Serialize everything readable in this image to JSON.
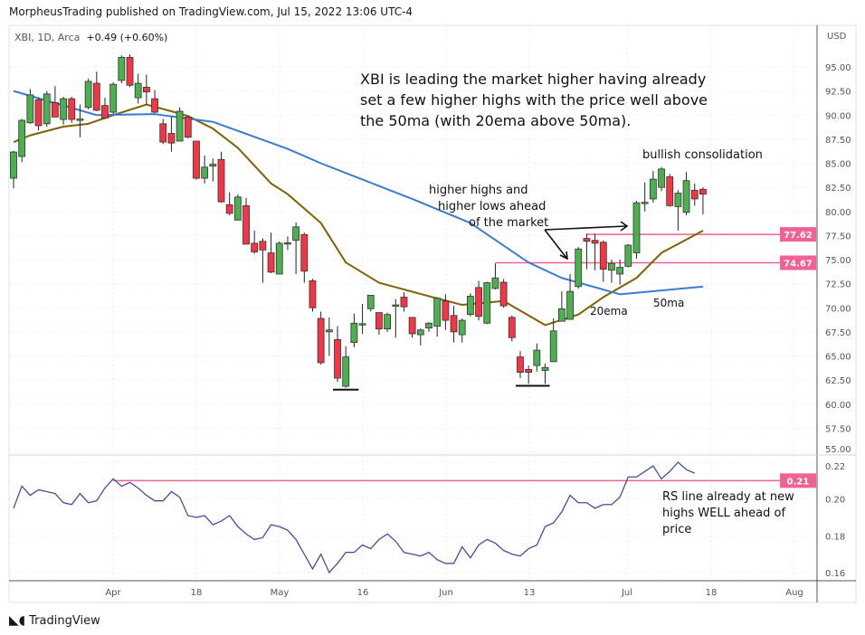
{
  "header": {
    "publisher": "MorpheusTrading published on TradingView.com, Jul 15, 2022 13:06 UTC-4",
    "symbol": "XBI, 1D, Arca",
    "change": "+0.49 (+0.60%)"
  },
  "footer": {
    "logo": "TradingView",
    "logo_icon": "tradingview-logo-icon"
  },
  "colors": {
    "up": "#4caf50",
    "down": "#f23645",
    "ema20": "#806000",
    "ma50": "#3a7bd5",
    "rs": "#4a4a9a",
    "level": "#f06292"
  },
  "chart_data": [
    {
      "type": "candlestick",
      "ylabel": "USD",
      "ylim": [
        55,
        97.5
      ],
      "yticks": [
        "95.00",
        "92.50",
        "90.00",
        "87.50",
        "85.00",
        "82.50",
        "80.00",
        "77.50",
        "75.00",
        "72.50",
        "70.00",
        "67.50",
        "65.00",
        "62.50",
        "60.00",
        "57.50",
        "55.00"
      ],
      "xticks": [
        "Apr",
        "18",
        "May",
        "16",
        "Jun",
        "13",
        "Jul",
        "18",
        "Aug"
      ],
      "ohlc": [
        [
          83.45,
          86.3,
          82.4,
          86.17
        ],
        [
          85.7,
          89.6,
          85.1,
          89.46
        ],
        [
          89.2,
          92.7,
          89.1,
          92.1
        ],
        [
          91.6,
          91.8,
          88.4,
          88.9
        ],
        [
          89.1,
          92.5,
          88.8,
          92.2
        ],
        [
          91.3,
          93.0,
          89.8,
          89.8
        ],
        [
          89.55,
          91.9,
          89.0,
          91.7
        ],
        [
          91.7,
          91.9,
          89.2,
          89.55
        ],
        [
          89.45,
          91.1,
          87.7,
          89.6
        ],
        [
          90.8,
          93.8,
          90.6,
          93.5
        ],
        [
          93.3,
          94.5,
          90.4,
          90.5
        ],
        [
          91.0,
          91.8,
          89.6,
          89.7
        ],
        [
          90.3,
          93.4,
          90.1,
          93.2
        ],
        [
          93.6,
          96.2,
          93.3,
          96.0
        ],
        [
          96.0,
          96.3,
          92.9,
          93.1
        ],
        [
          91.8,
          94.3,
          91.2,
          93.3
        ],
        [
          92.9,
          94.2,
          91.1,
          92.4
        ],
        [
          91.7,
          92.6,
          90.2,
          90.3
        ],
        [
          89.1,
          89.6,
          87.0,
          87.2
        ],
        [
          88.1,
          89.8,
          86.2,
          87.1
        ],
        [
          87.3,
          90.8,
          87.3,
          90.4
        ],
        [
          89.8,
          89.9,
          87.6,
          87.7
        ],
        [
          87.3,
          87.3,
          83.3,
          83.45
        ],
        [
          83.45,
          85.8,
          82.9,
          84.6
        ],
        [
          84.7,
          85.5,
          83.1,
          84.9
        ],
        [
          85.4,
          86.2,
          80.9,
          81.0
        ],
        [
          80.7,
          82.0,
          79.6,
          79.8
        ],
        [
          79.1,
          81.8,
          79.1,
          81.5
        ],
        [
          80.6,
          81.4,
          76.6,
          76.6
        ],
        [
          76.7,
          78.0,
          75.6,
          75.8
        ],
        [
          76.9,
          77.2,
          72.6,
          76.0
        ],
        [
          75.7,
          77.8,
          73.6,
          73.7
        ],
        [
          73.5,
          76.9,
          73.5,
          76.7
        ],
        [
          76.7,
          77.4,
          76.0,
          76.75
        ],
        [
          77.0,
          78.85,
          73.5,
          78.4
        ],
        [
          77.6,
          77.8,
          72.6,
          73.8
        ],
        [
          72.8,
          73.0,
          69.6,
          70.0
        ],
        [
          68.9,
          69.6,
          64.1,
          64.3
        ],
        [
          67.5,
          69.0,
          65.0,
          67.7
        ],
        [
          66.7,
          68.1,
          62.3,
          62.7
        ],
        [
          61.85,
          66.0,
          61.7,
          64.9
        ],
        [
          66.4,
          69.4,
          65.9,
          68.4
        ],
        [
          68.25,
          70.4,
          67.3,
          68.35
        ],
        [
          69.9,
          71.3,
          69.6,
          71.3
        ],
        [
          69.5,
          69.5,
          67.2,
          67.8
        ],
        [
          67.8,
          69.5,
          67.5,
          69.3
        ],
        [
          70.3,
          70.9,
          66.9,
          70.3
        ],
        [
          71.1,
          71.6,
          69.6,
          70.1
        ],
        [
          69.0,
          69.0,
          66.9,
          67.3
        ],
        [
          67.2,
          67.85,
          66.1,
          67.7
        ],
        [
          67.9,
          68.5,
          67.5,
          68.4
        ],
        [
          68.1,
          71.1,
          67.0,
          71.0
        ],
        [
          70.7,
          71.4,
          67.7,
          68.7
        ],
        [
          69.2,
          70.2,
          66.4,
          67.5
        ],
        [
          67.2,
          68.9,
          66.4,
          68.7
        ],
        [
          69.3,
          71.5,
          69.1,
          71.2
        ],
        [
          72.1,
          72.8,
          68.7,
          69.1
        ],
        [
          68.4,
          72.7,
          68.3,
          72.6
        ],
        [
          72.0,
          74.6,
          71.9,
          73.1
        ],
        [
          72.65,
          73.0,
          70.0,
          70.2
        ],
        [
          69.0,
          69.2,
          66.5,
          66.9
        ],
        [
          64.9,
          65.5,
          62.7,
          63.3
        ],
        [
          63.6,
          64.0,
          62.1,
          63.3
        ],
        [
          64.0,
          66.3,
          63.4,
          65.6
        ],
        [
          63.5,
          64.2,
          62.1,
          63.8
        ],
        [
          64.4,
          68.9,
          64.4,
          67.6
        ],
        [
          68.6,
          71.7,
          68.6,
          69.9
        ],
        [
          68.8,
          73.5,
          68.8,
          71.7
        ],
        [
          72.2,
          76.3,
          72.0,
          76.1
        ],
        [
          77.2,
          77.7,
          74.0,
          76.9
        ],
        [
          77.0,
          77.7,
          73.9,
          76.7
        ],
        [
          76.8,
          77.0,
          72.7,
          74.0
        ],
        [
          73.9,
          75.0,
          72.6,
          74.6
        ],
        [
          73.5,
          75.0,
          72.4,
          74.2
        ],
        [
          74.3,
          76.6,
          74.2,
          76.5
        ],
        [
          75.7,
          81.1,
          75.1,
          80.9
        ],
        [
          80.85,
          83.0,
          80.0,
          80.95
        ],
        [
          81.3,
          84.2,
          80.9,
          83.35
        ],
        [
          82.5,
          84.6,
          82.1,
          84.4
        ],
        [
          83.6,
          83.9,
          80.5,
          80.6
        ],
        [
          80.5,
          82.2,
          78.0,
          81.9
        ],
        [
          79.9,
          84.1,
          79.6,
          83.2
        ],
        [
          82.2,
          82.9,
          80.6,
          81.3
        ],
        [
          82.3,
          82.5,
          79.7,
          81.8
        ]
      ],
      "series": [
        {
          "name": "20ema",
          "points": [
            [
              0,
              87.2
            ],
            [
              2,
              87.9
            ],
            [
              6,
              88.8
            ],
            [
              9,
              89.1
            ],
            [
              12,
              90.0
            ],
            [
              16,
              91.1
            ],
            [
              19,
              90.4
            ],
            [
              21,
              89.9
            ],
            [
              24,
              88.6
            ],
            [
              27,
              86.6
            ],
            [
              31,
              82.9
            ],
            [
              33,
              81.8
            ],
            [
              37,
              78.8
            ],
            [
              40,
              74.7
            ],
            [
              44,
              72.6
            ],
            [
              50,
              71.2
            ],
            [
              54,
              70.3
            ],
            [
              59,
              70.7
            ],
            [
              64,
              68.2
            ],
            [
              68,
              69.3
            ],
            [
              71,
              71.1
            ],
            [
              75,
              73.1
            ],
            [
              78,
              75.7
            ],
            [
              83,
              78.0
            ]
          ]
        },
        {
          "name": "50ma",
          "points": [
            [
              0,
              92.5
            ],
            [
              10,
              90.0
            ],
            [
              17,
              90.1
            ],
            [
              24,
              89.3
            ],
            [
              33,
              86.5
            ],
            [
              37,
              85.0
            ],
            [
              48,
              81.3
            ],
            [
              55,
              78.8
            ],
            [
              62,
              74.7
            ],
            [
              66,
              73.1
            ],
            [
              73,
              71.4
            ],
            [
              83,
              72.2
            ]
          ]
        }
      ],
      "levels": [
        {
          "value": 77.62,
          "label": "77.62",
          "from_bar": 69
        },
        {
          "value": 74.67,
          "label": "74.67",
          "from_bar": 58
        }
      ],
      "swing_lows": [
        {
          "bars": [
            39,
            41
          ],
          "value": 61.5
        },
        {
          "bars": [
            61,
            64
          ],
          "value": 61.9
        }
      ],
      "annotations": {
        "main": [
          "XBI is leading the market higher having already",
          "set a few higher highs with the price well above",
          "the 50ma (with 20ema above 50ma)."
        ],
        "consolidation": "bullish consolidation",
        "higher_highs": [
          "higher highs and",
          "higher lows ahead",
          "of the market"
        ],
        "ema_label": "20ema",
        "ma_label": "50ma"
      }
    },
    {
      "type": "line",
      "ylim": [
        0.155,
        0.225
      ],
      "yticks": [
        "0.22",
        "0.20",
        "0.18",
        "0.16"
      ],
      "values": [
        0.195,
        0.207,
        0.202,
        0.205,
        0.204,
        0.203,
        0.198,
        0.197,
        0.203,
        0.198,
        0.199,
        0.206,
        0.211,
        0.207,
        0.209,
        0.206,
        0.202,
        0.199,
        0.199,
        0.204,
        0.201,
        0.191,
        0.19,
        0.191,
        0.186,
        0.188,
        0.191,
        0.185,
        0.181,
        0.178,
        0.179,
        0.186,
        0.185,
        0.183,
        0.178,
        0.17,
        0.162,
        0.17,
        0.16,
        0.165,
        0.171,
        0.171,
        0.175,
        0.173,
        0.178,
        0.181,
        0.177,
        0.171,
        0.17,
        0.169,
        0.171,
        0.167,
        0.165,
        0.165,
        0.174,
        0.168,
        0.175,
        0.178,
        0.176,
        0.172,
        0.17,
        0.169,
        0.173,
        0.175,
        0.185,
        0.187,
        0.193,
        0.202,
        0.198,
        0.198,
        0.195,
        0.197,
        0.197,
        0.201,
        0.212,
        0.212,
        0.215,
        0.218,
        0.211,
        0.215,
        0.22,
        0.216,
        0.214
      ],
      "level": {
        "value": 0.21,
        "label": "0.21",
        "from_bar": 12
      },
      "annotation": [
        "RS line already at new",
        "highs WELL ahead of",
        "price"
      ]
    }
  ]
}
